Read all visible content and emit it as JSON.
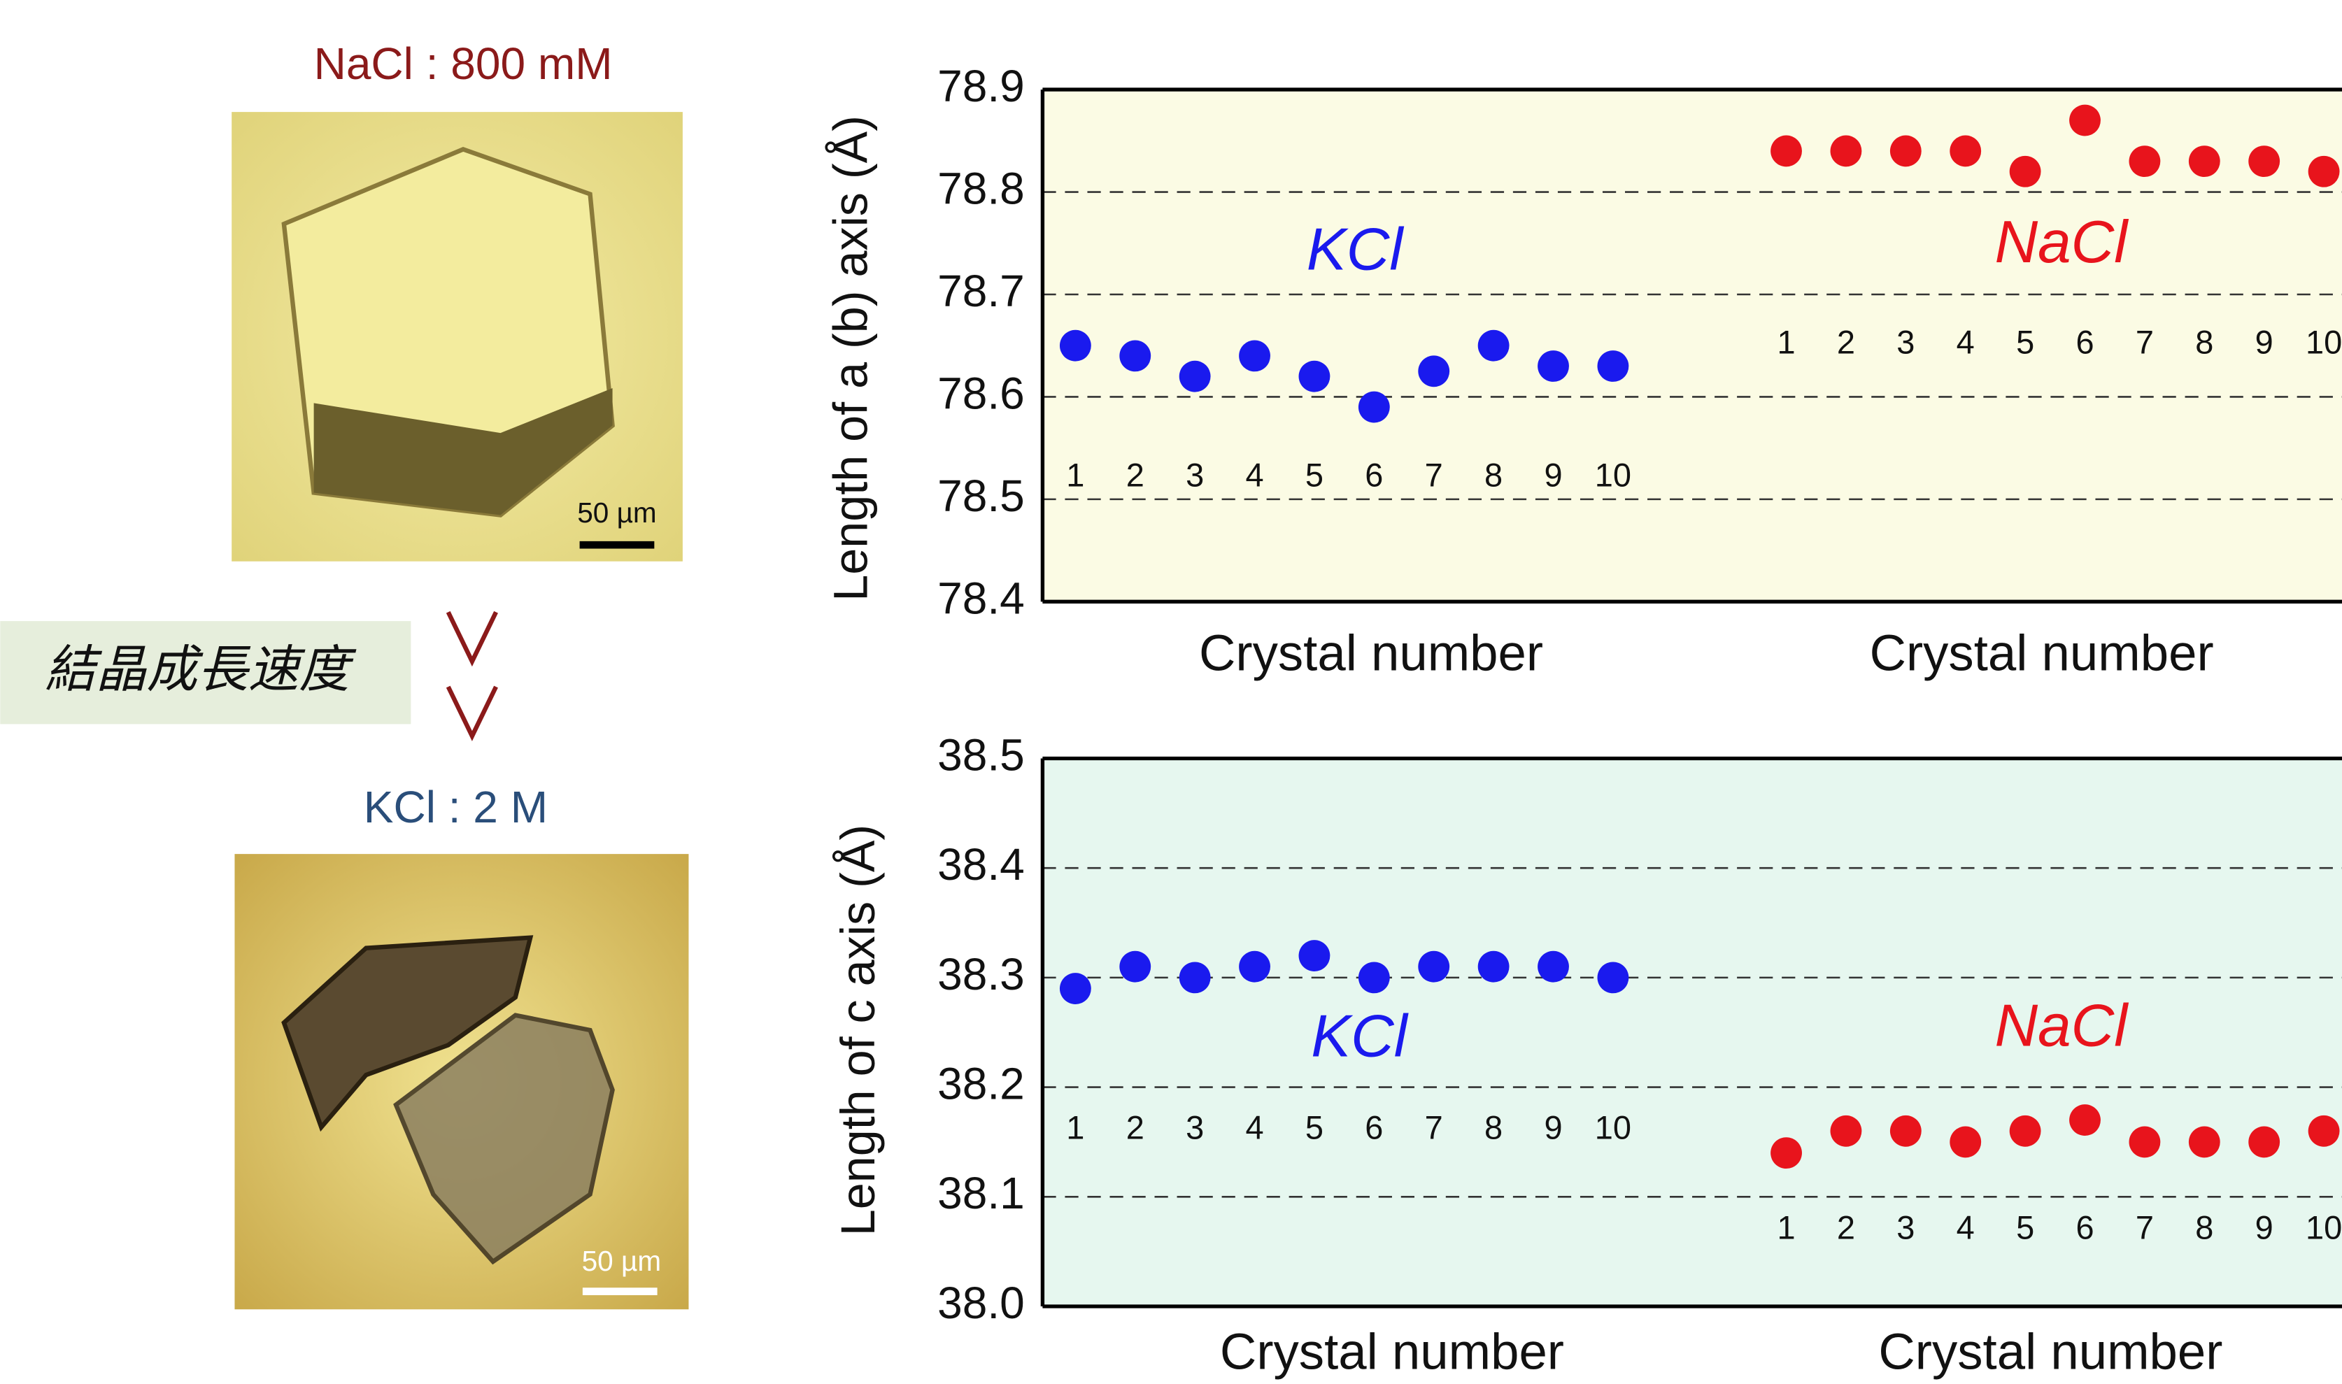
{
  "figure": {
    "top_caption": "NaCl : 800 mM",
    "arrow_box": "結晶成長速度",
    "bottom_caption": "KCl : 2 M",
    "scale_bars": [
      "50 µm",
      "50 µm"
    ]
  },
  "chart_data": [
    {
      "type": "scatter",
      "ylabel": "Length of a (b) axis  (Å)",
      "xlabels": [
        "Crystal number",
        "Crystal number"
      ],
      "ylim": [
        78.4,
        78.9
      ],
      "yticks": [
        78.4,
        78.5,
        78.6,
        78.7,
        78.8,
        78.9
      ],
      "grid": true,
      "background": "#fbfbe4",
      "series": [
        {
          "name": "KCl",
          "color": "#1a1aee",
          "x": [
            1,
            2,
            3,
            4,
            5,
            6,
            7,
            8,
            9,
            10
          ],
          "values": [
            78.65,
            78.64,
            78.62,
            78.64,
            78.62,
            78.59,
            78.625,
            78.65,
            78.63,
            78.63
          ]
        },
        {
          "name": "NaCl",
          "color": "#e8141c",
          "x": [
            1,
            2,
            3,
            4,
            5,
            6,
            7,
            8,
            9,
            10
          ],
          "values": [
            78.84,
            78.84,
            78.84,
            78.84,
            78.82,
            78.87,
            78.83,
            78.83,
            78.83,
            78.82
          ]
        }
      ]
    },
    {
      "type": "scatter",
      "ylabel": "Length of c axis  (Å)",
      "xlabels": [
        "Crystal number",
        "Crystal number"
      ],
      "ylim": [
        38.0,
        38.5
      ],
      "yticks": [
        {
          "value": 38.0,
          "label": "38.0"
        },
        38.1,
        38.2,
        38.3,
        38.4,
        38.5
      ],
      "grid": true,
      "background": "#e6f7ef",
      "series": [
        {
          "name": "KCl",
          "color": "#1a1aee",
          "x": [
            1,
            2,
            3,
            4,
            5,
            6,
            7,
            8,
            9,
            10
          ],
          "values": [
            38.29,
            38.31,
            38.3,
            38.31,
            38.32,
            38.3,
            38.31,
            38.31,
            38.31,
            38.3
          ]
        },
        {
          "name": "NaCl",
          "color": "#e8141c",
          "x": [
            1,
            2,
            3,
            4,
            5,
            6,
            7,
            8,
            9,
            10
          ],
          "values": [
            38.14,
            38.16,
            38.16,
            38.15,
            38.16,
            38.17,
            38.15,
            38.15,
            38.15,
            38.16
          ]
        }
      ]
    }
  ]
}
